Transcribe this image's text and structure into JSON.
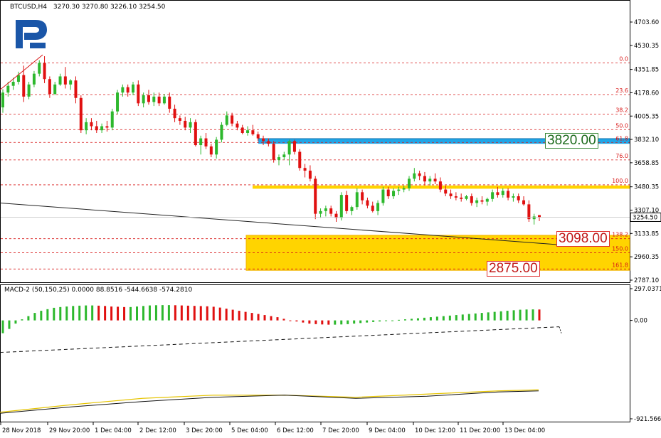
{
  "header": {
    "symbol": "BTCUSD,H4",
    "ohlc": "3270.30 3270.80 3226.10 3254.50"
  },
  "macd_header": {
    "text": "MACD-2 (50,150,25) 0.0000 88.8516 -544.6638 -574.2810"
  },
  "logo": {
    "name": "logo-R"
  },
  "colors": {
    "bull": "#2db82d",
    "bear": "#e01010",
    "fib": "#d81818",
    "blue_band": "#1fa6e8",
    "gold": "#ffd400",
    "gold_edge": "#f2b200",
    "grid": "#bfbfbf"
  },
  "price_axis": {
    "ticks": [
      "4703.60",
      "4530.35",
      "4351.85",
      "4178.60",
      "4005.35",
      "3832.10",
      "3658.85",
      "3480.35",
      "3307.10",
      "3133.85",
      "2960.35",
      "2787.10"
    ],
    "current": "3254.50"
  },
  "macd_axis": {
    "ticks": [
      "297.0371",
      "0.00",
      "-921.5663"
    ]
  },
  "time_axis": {
    "labels": [
      "28 Nov 2018",
      "29 Nov 20:00",
      "1 Dec 04:00",
      "2 Dec 12:00",
      "3 Dec 20:00",
      "5 Dec 04:00",
      "6 Dec 12:00",
      "7 Dec 20:00",
      "9 Dec 04:00",
      "10 Dec 12:00",
      "11 Dec 20:00",
      "13 Dec 04:00"
    ]
  },
  "fib_labels": [
    "0.0",
    "23.6",
    "38.2",
    "50.0",
    "61.8",
    "76.0",
    "100.0",
    "138.2",
    "150.0",
    "161.8"
  ],
  "annotations": {
    "target_top": "3820.00",
    "target_mid": "3098.00",
    "target_low": "2875.00"
  },
  "chart_data": {
    "type": "candlestick",
    "symbol": "BTCUSD",
    "timeframe": "H4",
    "ylim": [
      2700,
      4780
    ],
    "fib_levels": [
      {
        "label": "0.0",
        "price": 4400
      },
      {
        "label": "23.6",
        "price": 4165
      },
      {
        "label": "38.2",
        "price": 4020
      },
      {
        "label": "50.0",
        "price": 3905
      },
      {
        "label": "61.8",
        "price": 3810
      },
      {
        "label": "76.0",
        "price": 3680
      },
      {
        "label": "100.0",
        "price": 3495
      },
      {
        "label": "138.2",
        "price": 3095
      },
      {
        "label": "150.0",
        "price": 2990
      },
      {
        "label": "161.8",
        "price": 2870
      }
    ],
    "zones": [
      {
        "name": "resistance-band",
        "from": 3800,
        "to": 3838
      },
      {
        "name": "pivot-band",
        "from": 3466,
        "to": 3490
      },
      {
        "name": "target-zone",
        "from": 2860,
        "to": 3120
      }
    ],
    "candles": [
      [
        4070,
        4205,
        4030,
        4180
      ],
      [
        4180,
        4260,
        4150,
        4230
      ],
      [
        4230,
        4290,
        4200,
        4260
      ],
      [
        4260,
        4335,
        4240,
        4310
      ],
      [
        4310,
        4380,
        4110,
        4150
      ],
      [
        4150,
        4260,
        4130,
        4240
      ],
      [
        4240,
        4340,
        4220,
        4320
      ],
      [
        4320,
        4420,
        4300,
        4400
      ],
      [
        4400,
        4450,
        4250,
        4280
      ],
      [
        4280,
        4300,
        4140,
        4170
      ],
      [
        4170,
        4260,
        4160,
        4240
      ],
      [
        4240,
        4320,
        4230,
        4300
      ],
      [
        4300,
        4370,
        4210,
        4240
      ],
      [
        4240,
        4280,
        4200,
        4270
      ],
      [
        4270,
        4300,
        4100,
        4140
      ],
      [
        4140,
        4160,
        3880,
        3900
      ],
      [
        3900,
        3990,
        3870,
        3960
      ],
      [
        3960,
        3990,
        3900,
        3930
      ],
      [
        3930,
        3970,
        3880,
        3900
      ],
      [
        3900,
        3950,
        3880,
        3930
      ],
      [
        3930,
        3970,
        3890,
        3920
      ],
      [
        3920,
        4060,
        3900,
        4040
      ],
      [
        4040,
        4200,
        4020,
        4180
      ],
      [
        4180,
        4240,
        4150,
        4220
      ],
      [
        4220,
        4240,
        4150,
        4180
      ],
      [
        4180,
        4260,
        4160,
        4240
      ],
      [
        4240,
        4270,
        4080,
        4100
      ],
      [
        4100,
        4180,
        4070,
        4160
      ],
      [
        4160,
        4200,
        4090,
        4110
      ],
      [
        4110,
        4180,
        4080,
        4150
      ],
      [
        4150,
        4180,
        4080,
        4100
      ],
      [
        4100,
        4170,
        4090,
        4150
      ],
      [
        4150,
        4180,
        4030,
        4060
      ],
      [
        4060,
        4090,
        3960,
        3990
      ],
      [
        3990,
        4010,
        3940,
        3970
      ],
      [
        3970,
        4000,
        3900,
        3920
      ],
      [
        3920,
        3990,
        3880,
        3960
      ],
      [
        3960,
        3980,
        3780,
        3790
      ],
      [
        3790,
        3860,
        3720,
        3840
      ],
      [
        3840,
        3880,
        3760,
        3780
      ],
      [
        3780,
        3800,
        3700,
        3720
      ],
      [
        3720,
        3850,
        3690,
        3830
      ],
      [
        3830,
        3960,
        3810,
        3940
      ],
      [
        3940,
        4040,
        3930,
        4010
      ],
      [
        4010,
        4030,
        3930,
        3950
      ],
      [
        3950,
        3970,
        3900,
        3920
      ],
      [
        3920,
        3940,
        3870,
        3880
      ],
      [
        3880,
        3930,
        3860,
        3900
      ],
      [
        3900,
        3940,
        3860,
        3870
      ],
      [
        3870,
        3890,
        3820,
        3840
      ],
      [
        3840,
        3860,
        3790,
        3820
      ],
      [
        3820,
        3840,
        3780,
        3800
      ],
      [
        3800,
        3820,
        3660,
        3680
      ],
      [
        3680,
        3720,
        3640,
        3700
      ],
      [
        3700,
        3740,
        3680,
        3720
      ],
      [
        3720,
        3830,
        3640,
        3820
      ],
      [
        3820,
        3830,
        3720,
        3740
      ],
      [
        3740,
        3760,
        3600,
        3620
      ],
      [
        3620,
        3650,
        3550,
        3600
      ],
      [
        3600,
        3640,
        3520,
        3540
      ],
      [
        3540,
        3560,
        3240,
        3280
      ],
      [
        3280,
        3320,
        3250,
        3300
      ],
      [
        3300,
        3340,
        3260,
        3320
      ],
      [
        3320,
        3340,
        3260,
        3280
      ],
      [
        3280,
        3300,
        3220,
        3250
      ],
      [
        3250,
        3440,
        3230,
        3420
      ],
      [
        3420,
        3450,
        3280,
        3300
      ],
      [
        3300,
        3340,
        3270,
        3330
      ],
      [
        3330,
        3470,
        3310,
        3440
      ],
      [
        3440,
        3460,
        3350,
        3380
      ],
      [
        3380,
        3400,
        3320,
        3340
      ],
      [
        3340,
        3370,
        3290,
        3300
      ],
      [
        3300,
        3380,
        3270,
        3360
      ],
      [
        3360,
        3480,
        3340,
        3460
      ],
      [
        3460,
        3480,
        3390,
        3410
      ],
      [
        3410,
        3470,
        3390,
        3450
      ],
      [
        3450,
        3480,
        3420,
        3460
      ],
      [
        3460,
        3490,
        3440,
        3470
      ],
      [
        3470,
        3560,
        3450,
        3540
      ],
      [
        3540,
        3620,
        3520,
        3580
      ],
      [
        3580,
        3600,
        3530,
        3560
      ],
      [
        3560,
        3590,
        3490,
        3520
      ],
      [
        3520,
        3560,
        3490,
        3540
      ],
      [
        3540,
        3580,
        3500,
        3520
      ],
      [
        3520,
        3550,
        3440,
        3460
      ],
      [
        3460,
        3490,
        3410,
        3430
      ],
      [
        3430,
        3460,
        3390,
        3410
      ],
      [
        3410,
        3440,
        3380,
        3400
      ],
      [
        3400,
        3430,
        3370,
        3390
      ],
      [
        3390,
        3420,
        3380,
        3410
      ],
      [
        3410,
        3430,
        3340,
        3360
      ],
      [
        3360,
        3400,
        3330,
        3380
      ],
      [
        3380,
        3410,
        3350,
        3370
      ],
      [
        3370,
        3400,
        3340,
        3390
      ],
      [
        3390,
        3460,
        3370,
        3440
      ],
      [
        3440,
        3480,
        3400,
        3420
      ],
      [
        3420,
        3470,
        3400,
        3450
      ],
      [
        3450,
        3470,
        3380,
        3400
      ],
      [
        3400,
        3430,
        3370,
        3410
      ],
      [
        3410,
        3430,
        3360,
        3380
      ],
      [
        3380,
        3410,
        3340,
        3350
      ],
      [
        3350,
        3380,
        3220,
        3240
      ],
      [
        3240,
        3280,
        3200,
        3260
      ],
      [
        3270,
        3271,
        3226,
        3254
      ]
    ],
    "macd_histogram": [
      -120,
      -80,
      -30,
      10,
      40,
      70,
      90,
      105,
      118,
      125,
      130,
      135,
      138,
      140,
      140,
      138,
      135,
      130,
      128,
      125,
      125,
      130,
      135,
      140,
      142,
      143,
      143,
      142,
      140,
      138,
      136,
      134,
      132,
      128,
      120,
      110,
      100,
      90,
      80,
      70,
      60,
      50,
      40,
      30,
      15,
      0,
      -10,
      -20,
      -30,
      -35,
      -38,
      -40,
      -40,
      -38,
      -35,
      -30,
      -25,
      -20,
      -15,
      -10,
      -5,
      0,
      5,
      10,
      15,
      20,
      25,
      30,
      35,
      40,
      45,
      50,
      55,
      60,
      65,
      70,
      75,
      80,
      85,
      90,
      95,
      100,
      102,
      103,
      102
    ],
    "macd_signal_line": [
      [
        0,
        -300
      ],
      [
        786,
        -60
      ]
    ],
    "macd_signal_dashed_end": [
      [
        786,
        -60
      ],
      [
        789,
        -120
      ]
    ],
    "bottom_lines": {
      "yellow": [
        [
          0,
          -860
        ],
        [
          100,
          -790
        ],
        [
          200,
          -730
        ],
        [
          300,
          -700
        ],
        [
          400,
          -700
        ],
        [
          500,
          -720
        ],
        [
          600,
          -690
        ],
        [
          700,
          -660
        ],
        [
          757,
          -650
        ]
      ],
      "black": [
        [
          0,
          -870
        ],
        [
          100,
          -810
        ],
        [
          200,
          -760
        ],
        [
          300,
          -720
        ],
        [
          400,
          -700
        ],
        [
          500,
          -730
        ],
        [
          600,
          -710
        ],
        [
          700,
          -670
        ],
        [
          757,
          -660
        ]
      ]
    },
    "trend_line": [
      [
        0,
        3360
      ],
      [
        786,
        3050
      ]
    ],
    "current_price": 3254.5
  }
}
